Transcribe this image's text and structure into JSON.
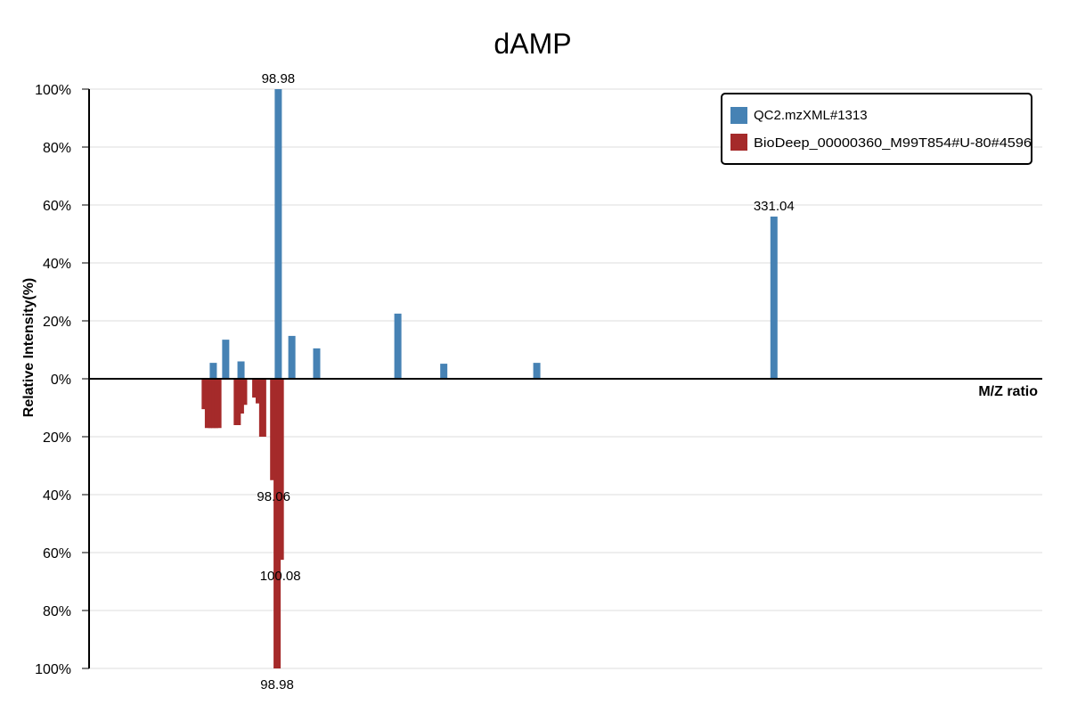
{
  "chart_data": {
    "type": "bar",
    "title": "dAMP",
    "xlabel": "M/Z ratio",
    "ylabel": "Relative Intensity(%)",
    "y_ticks_top": [
      "100%",
      "80%",
      "60%",
      "40%",
      "20%",
      "0%"
    ],
    "y_ticks_bottom": [
      "20%",
      "40%",
      "60%",
      "80%",
      "100%"
    ],
    "ylim": [
      -100,
      100
    ],
    "xlim": [
      50,
      380
    ],
    "grid": true,
    "legend_position": "top-right",
    "series": [
      {
        "name": "QC2.mzXML#1313",
        "color": "#4682b4",
        "direction": "up",
        "peaks": [
          {
            "x": 93.0,
            "y": 5.5
          },
          {
            "x": 97.3,
            "y": 13.5
          },
          {
            "x": 102.6,
            "y": 6.0
          },
          {
            "x": 115.5,
            "y": 100.0,
            "label": "98.98"
          },
          {
            "x": 120.2,
            "y": 14.8
          },
          {
            "x": 128.8,
            "y": 10.5
          },
          {
            "x": 156.9,
            "y": 22.5
          },
          {
            "x": 172.8,
            "y": 5.2
          },
          {
            "x": 205.0,
            "y": 5.5
          },
          {
            "x": 287.1,
            "y": 56.0,
            "label": "331.04"
          }
        ]
      },
      {
        "name": "BioDeep_00000360_M99T854#U-80#4596",
        "color": "#a52a2a",
        "direction": "down",
        "peaks": [
          {
            "x": 90.2,
            "y": 10.5
          },
          {
            "x": 91.3,
            "y": 17.0
          },
          {
            "x": 92.4,
            "y": 17.0
          },
          {
            "x": 93.5,
            "y": 17.0
          },
          {
            "x": 94.6,
            "y": 17.0
          },
          {
            "x": 101.3,
            "y": 16.0
          },
          {
            "x": 102.4,
            "y": 12.0
          },
          {
            "x": 103.5,
            "y": 9.0
          },
          {
            "x": 107.7,
            "y": 6.5
          },
          {
            "x": 108.9,
            "y": 8.5
          },
          {
            "x": 110.1,
            "y": 20.0
          },
          {
            "x": 113.9,
            "y": 35.0,
            "label": "98.06"
          },
          {
            "x": 115.1,
            "y": 100.0,
            "label": "98.98"
          },
          {
            "x": 116.2,
            "y": 62.5,
            "label": "100.08"
          }
        ]
      }
    ]
  }
}
